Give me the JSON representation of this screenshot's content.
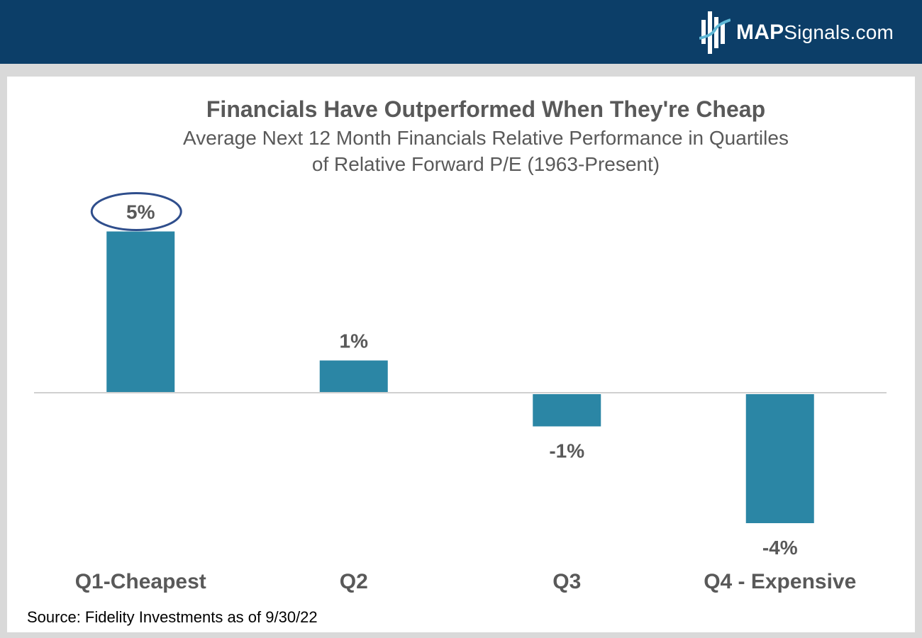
{
  "brand": {
    "name_bold": "MAP",
    "name_rest": "Signals.com"
  },
  "colors": {
    "header_bg": "#0c3e68",
    "bar": "#2b86a5",
    "highlight_ellipse": "#2f4e8c",
    "text": "#595959"
  },
  "chart_data": {
    "type": "bar",
    "title": "Financials Have Outperformed When They're Cheap",
    "subtitle": [
      "Average Next 12 Month Financials Relative Performance in Quartiles",
      "of Relative Forward P/E (1963-Present)"
    ],
    "categories": [
      "Q1-Cheapest",
      "Q2",
      "Q3",
      "Q4 - Expensive"
    ],
    "values": [
      5,
      1,
      -1,
      -4
    ],
    "data_labels": [
      "5%",
      "1%",
      "-1%",
      "-4%"
    ],
    "highlighted_label": "5%",
    "ylabel": "",
    "xlabel": "",
    "grid": false,
    "legend": "none"
  },
  "source": "Source: Fidelity Investments as of 9/30/22"
}
